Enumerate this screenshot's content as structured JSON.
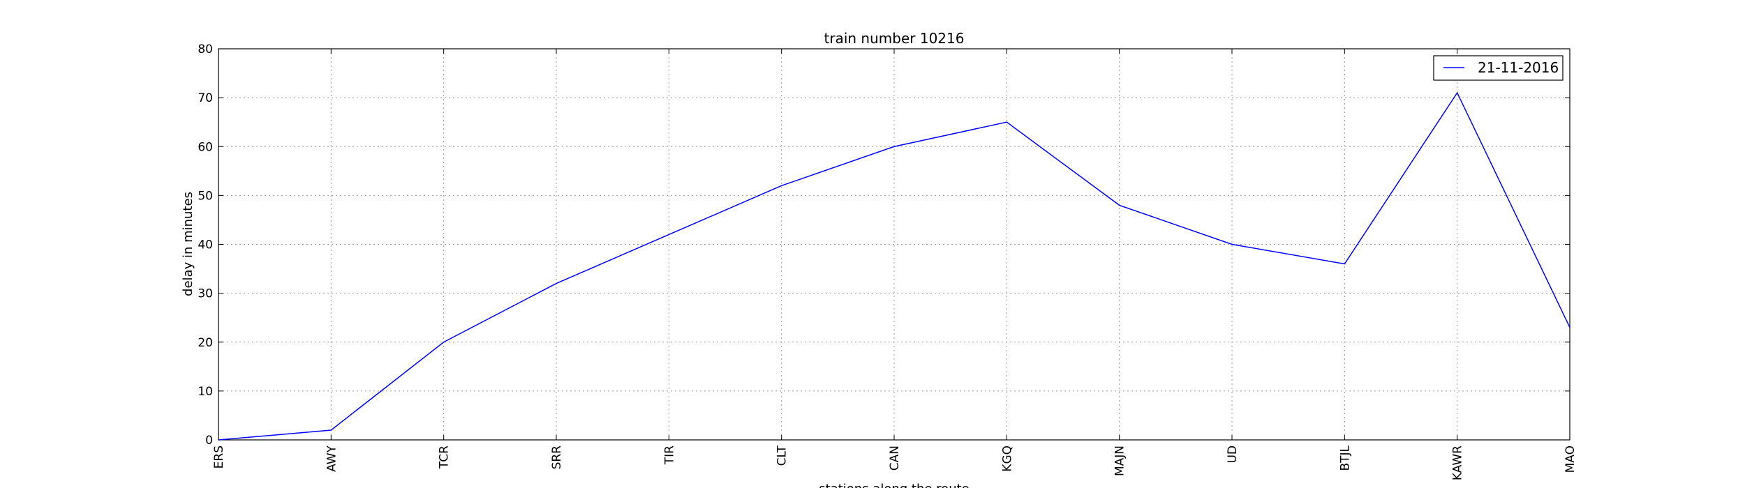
{
  "chart_data": {
    "type": "line",
    "title": "train number 10216",
    "xlabel": "stations along the route",
    "ylabel": "delay in minutes",
    "categories": [
      "ERS",
      "AWY",
      "TCR",
      "SRR",
      "TIR",
      "CLT",
      "CAN",
      "KGQ",
      "MAJN",
      "UD",
      "BTJL",
      "KAWR",
      "MAO"
    ],
    "series": [
      {
        "name": "21-11-2016",
        "color": "#0000ff",
        "values": [
          0,
          2,
          20,
          32,
          42,
          52,
          60,
          65,
          48,
          40,
          36,
          71,
          23
        ]
      }
    ],
    "ylim": [
      0,
      80
    ],
    "yticks": [
      0,
      10,
      20,
      30,
      40,
      50,
      60,
      70,
      80
    ],
    "grid": true,
    "legend_position": "top-right"
  }
}
